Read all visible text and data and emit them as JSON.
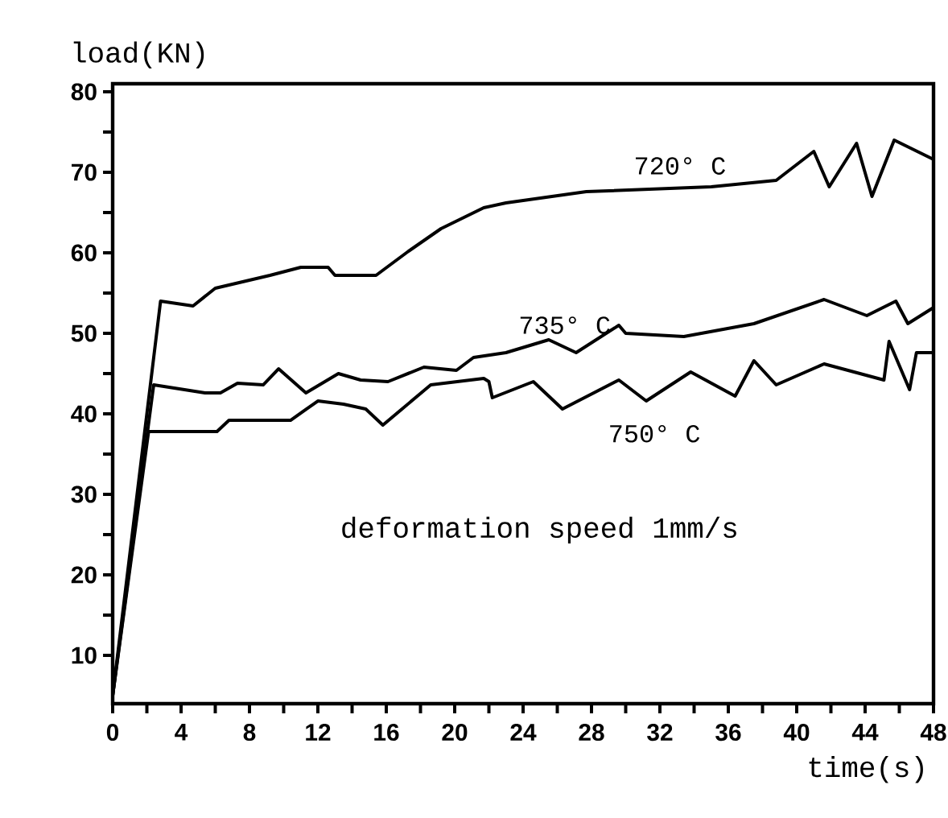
{
  "chart_data": {
    "type": "line",
    "xlabel": "time(s)",
    "ylabel": "load(KN)",
    "xlim": [
      0,
      48
    ],
    "ylim": [
      4,
      81
    ],
    "xticks": [
      0,
      {
        "value": 2,
        "label": null
      },
      4,
      {
        "value": 6,
        "label": null
      },
      8,
      {
        "value": 10,
        "label": null
      },
      12,
      {
        "value": 14,
        "label": null
      },
      16,
      {
        "value": 18,
        "label": null
      },
      20,
      {
        "value": 22,
        "label": null
      },
      24,
      {
        "value": 26,
        "label": null
      },
      28,
      {
        "value": 30,
        "label": null
      },
      32,
      {
        "value": 34,
        "label": null
      },
      36,
      {
        "value": 38,
        "label": null
      },
      40,
      {
        "value": 42,
        "label": null
      },
      44,
      {
        "value": 46,
        "label": null
      },
      48
    ],
    "yticks": [
      10,
      {
        "value": 15,
        "label": null
      },
      20,
      {
        "value": 25,
        "label": null
      },
      30,
      {
        "value": 35,
        "label": null
      },
      40,
      {
        "value": 45,
        "label": null
      },
      50,
      {
        "value": 55,
        "label": null
      },
      60,
      {
        "value": 65,
        "label": null
      },
      70,
      {
        "value": 75,
        "label": null
      },
      80
    ],
    "marker": "none",
    "line_style": "solid",
    "series": [
      {
        "name": "720° C",
        "color": "#000000",
        "x": [
          0,
          2.8,
          4.7,
          6,
          9.2,
          11,
          12.6,
          13,
          15.4,
          17.3,
          19.2,
          21.7,
          23,
          27.7,
          35,
          38.8,
          41,
          41.9,
          43.5,
          44.4,
          45.7,
          48
        ],
        "values": [
          5,
          54,
          53.4,
          55.6,
          57.2,
          58.2,
          58.2,
          57.2,
          57.2,
          60.2,
          63,
          65.6,
          66.2,
          67.6,
          68.2,
          69,
          72.6,
          68.2,
          73.6,
          67,
          74,
          71.6
        ]
      },
      {
        "name": "735° C",
        "color": "#000000",
        "x": [
          0,
          2.4,
          5.4,
          6.3,
          7.3,
          8.8,
          9.7,
          11.3,
          13.2,
          14.5,
          16.1,
          18.2,
          20.1,
          21.1,
          23,
          25.5,
          27.1,
          29.6,
          30,
          33.4,
          37.5,
          41.6,
          44.1,
          45.8,
          46.5,
          48
        ],
        "values": [
          5,
          43.6,
          42.6,
          42.6,
          43.8,
          43.6,
          45.6,
          42.6,
          45,
          44.2,
          44,
          45.8,
          45.4,
          47,
          47.6,
          49.2,
          47.6,
          51,
          50,
          49.6,
          51.2,
          54.2,
          52.2,
          54,
          51.2,
          53.2
        ]
      },
      {
        "name": "750° C",
        "color": "#000000",
        "x": [
          0,
          2.1,
          6.1,
          6.8,
          10.4,
          12,
          13.5,
          14.8,
          15.8,
          18.6,
          21.7,
          22,
          22.2,
          24.6,
          26.3,
          29.6,
          31.2,
          33.8,
          36.4,
          37.5,
          38.8,
          41.6,
          45.1,
          45.4,
          46.6,
          47,
          48
        ],
        "values": [
          5,
          37.8,
          37.8,
          39.2,
          39.2,
          41.6,
          41.2,
          40.6,
          38.6,
          43.6,
          44.4,
          44,
          42,
          44,
          40.6,
          44.2,
          41.6,
          45.2,
          42.2,
          46.6,
          43.6,
          46.2,
          44.2,
          49,
          43,
          47.6,
          47.6
        ]
      }
    ],
    "annotations": [
      "deformation speed 1mm/s"
    ]
  }
}
